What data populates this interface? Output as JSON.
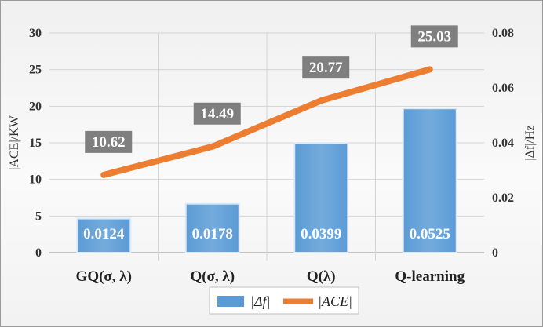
{
  "chart_data": {
    "type": "bar",
    "categories": [
      "GQ(σ, λ)",
      "Q(σ, λ)",
      "Q(λ)",
      "Q-learning"
    ],
    "series": [
      {
        "name": "|Δf|",
        "chart_type": "bar",
        "axis": "right",
        "values": [
          0.0124,
          0.0178,
          0.0399,
          0.0525
        ],
        "labels": [
          "0.0124",
          "0.0178",
          "0.0399",
          "0.0525"
        ],
        "color": "#5b9bd5"
      },
      {
        "name": "|ACE|",
        "chart_type": "line",
        "axis": "left",
        "values": [
          10.62,
          14.49,
          20.77,
          25.03
        ],
        "labels": [
          "10.62",
          "14.49",
          "20.77",
          "25.03"
        ],
        "color": "#ed7d31"
      }
    ],
    "y_left": {
      "label": "|ACE|/KW",
      "range": [
        0,
        30
      ],
      "ticks": [
        "0",
        "5",
        "10",
        "15",
        "20",
        "25",
        "30"
      ]
    },
    "y_right": {
      "label": "|Δf|/Hz",
      "range": [
        0,
        0.08
      ],
      "ticks": [
        "0",
        "0.02",
        "0.04",
        "0.06",
        "0.08"
      ]
    },
    "grid": true,
    "legend_position": "bottom",
    "data_label_bg": "#7f7f7f"
  }
}
